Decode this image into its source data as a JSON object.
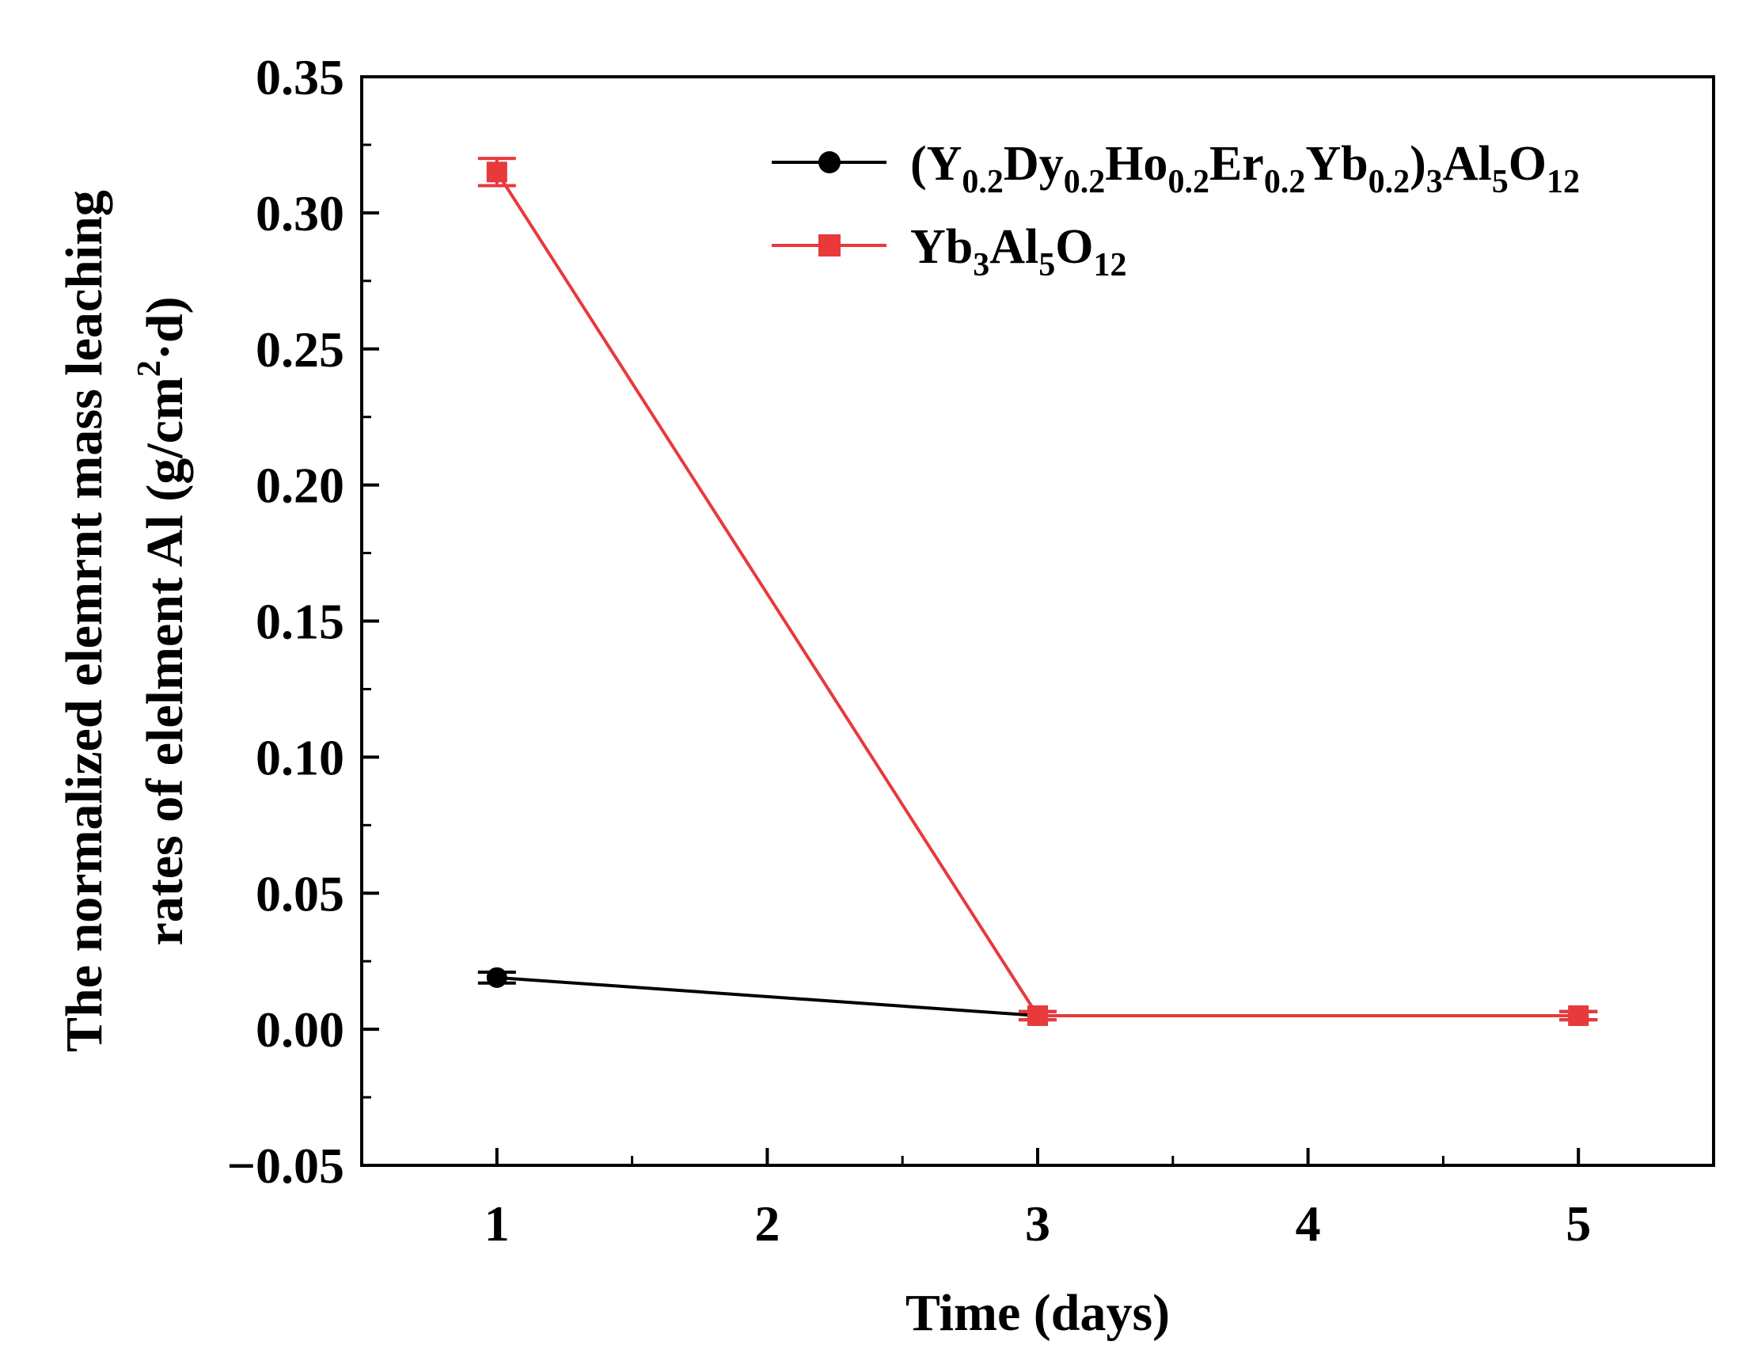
{
  "chart_data": {
    "type": "line",
    "title": "",
    "xlabel": "Time (days)",
    "ylabel_line1": "The normalized elemrnt mass leaching",
    "ylabel_line2": "rates of elelment Al (g/cm",
    "ylabel_sup": "2",
    "ylabel_end": "·d)",
    "xlim": [
      0.5,
      5.5
    ],
    "ylim": [
      -0.05,
      0.35
    ],
    "x_ticks": [
      1,
      2,
      3,
      4,
      5
    ],
    "x_tick_labels": [
      "1",
      "2",
      "3",
      "4",
      "5"
    ],
    "y_ticks": [
      -0.05,
      0.0,
      0.05,
      0.1,
      0.15,
      0.2,
      0.25,
      0.3,
      0.35
    ],
    "y_tick_labels": [
      "−0.05",
      "0.00",
      "0.05",
      "0.10",
      "0.15",
      "0.20",
      "0.25",
      "0.30",
      "0.35"
    ],
    "grid": false,
    "legend_position": "top-right",
    "series": [
      {
        "name": "(Y0.2Dy0.2Ho0.2Er0.2Yb0.2)3Al5O12",
        "legend_parts": [
          {
            "t": "(Y",
            "s": "n"
          },
          {
            "t": "0.2",
            "s": "sub"
          },
          {
            "t": "Dy",
            "s": "n"
          },
          {
            "t": "0.2",
            "s": "sub"
          },
          {
            "t": "Ho",
            "s": "n"
          },
          {
            "t": "0.2",
            "s": "sub"
          },
          {
            "t": "Er",
            "s": "n"
          },
          {
            "t": "0.2",
            "s": "sub"
          },
          {
            "t": "Yb",
            "s": "n"
          },
          {
            "t": "0.2",
            "s": "sub"
          },
          {
            "t": ")",
            "s": "n"
          },
          {
            "t": "3",
            "s": "sub"
          },
          {
            "t": "Al",
            "s": "n"
          },
          {
            "t": "5",
            "s": "sub"
          },
          {
            "t": "O",
            "s": "n"
          },
          {
            "t": "12",
            "s": "sub"
          }
        ],
        "color": "#000000",
        "marker": "circle",
        "x": [
          1,
          3,
          5
        ],
        "y": [
          0.019,
          0.005,
          0.005
        ],
        "yerr": [
          0.002,
          0.0015,
          0.0015
        ]
      },
      {
        "name": "Yb3Al5O12",
        "legend_parts": [
          {
            "t": "Yb",
            "s": "n"
          },
          {
            "t": "3",
            "s": "sub"
          },
          {
            "t": "Al",
            "s": "n"
          },
          {
            "t": "5",
            "s": "sub"
          },
          {
            "t": "O",
            "s": "n"
          },
          {
            "t": "12",
            "s": "sub"
          }
        ],
        "color": "#e8393b",
        "marker": "square",
        "x": [
          1,
          3,
          5
        ],
        "y": [
          0.315,
          0.005,
          0.005
        ],
        "yerr": [
          0.005,
          0.0015,
          0.0015
        ]
      }
    ]
  }
}
